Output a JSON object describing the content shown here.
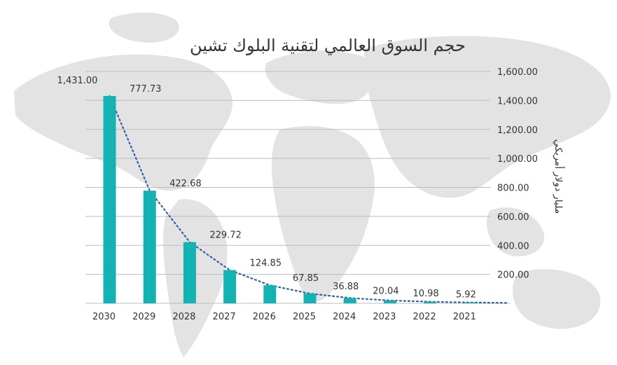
{
  "chart_data": {
    "type": "bar",
    "title": "حجم السوق العالمي لتقنية البلوك تشين",
    "ylabel": "مليار دولار أمريكي",
    "xlabel": "",
    "categories": [
      "2030",
      "2029",
      "2028",
      "2027",
      "2026",
      "2025",
      "2024",
      "2023",
      "2022",
      "2021"
    ],
    "values": [
      1431.0,
      777.73,
      422.68,
      229.72,
      124.85,
      67.85,
      36.88,
      20.04,
      10.98,
      5.92
    ],
    "value_labels": [
      "1,431.00",
      "777.73",
      "422.68",
      "229.72",
      "124.85",
      "67.85",
      "36.88",
      "20.04",
      "10.98",
      "5.92"
    ],
    "ylim": [
      0,
      1600
    ],
    "y_ticks": [
      200,
      400,
      600,
      800,
      1000,
      1200,
      1400,
      1600
    ],
    "y_tick_labels": [
      "200.00",
      "400.00",
      "600.00",
      "800.00",
      "1,000.00",
      "1,200.00",
      "1,400.00",
      "1,600.00"
    ],
    "y_axis_side": "right",
    "grid": true,
    "trendline": "exponential, dotted",
    "colors": {
      "bar": "#15b2b3",
      "trendline": "#2f5fa8",
      "grid": "#bdbdbd",
      "background_map": "#e2e2e2",
      "text": "#333333"
    }
  }
}
